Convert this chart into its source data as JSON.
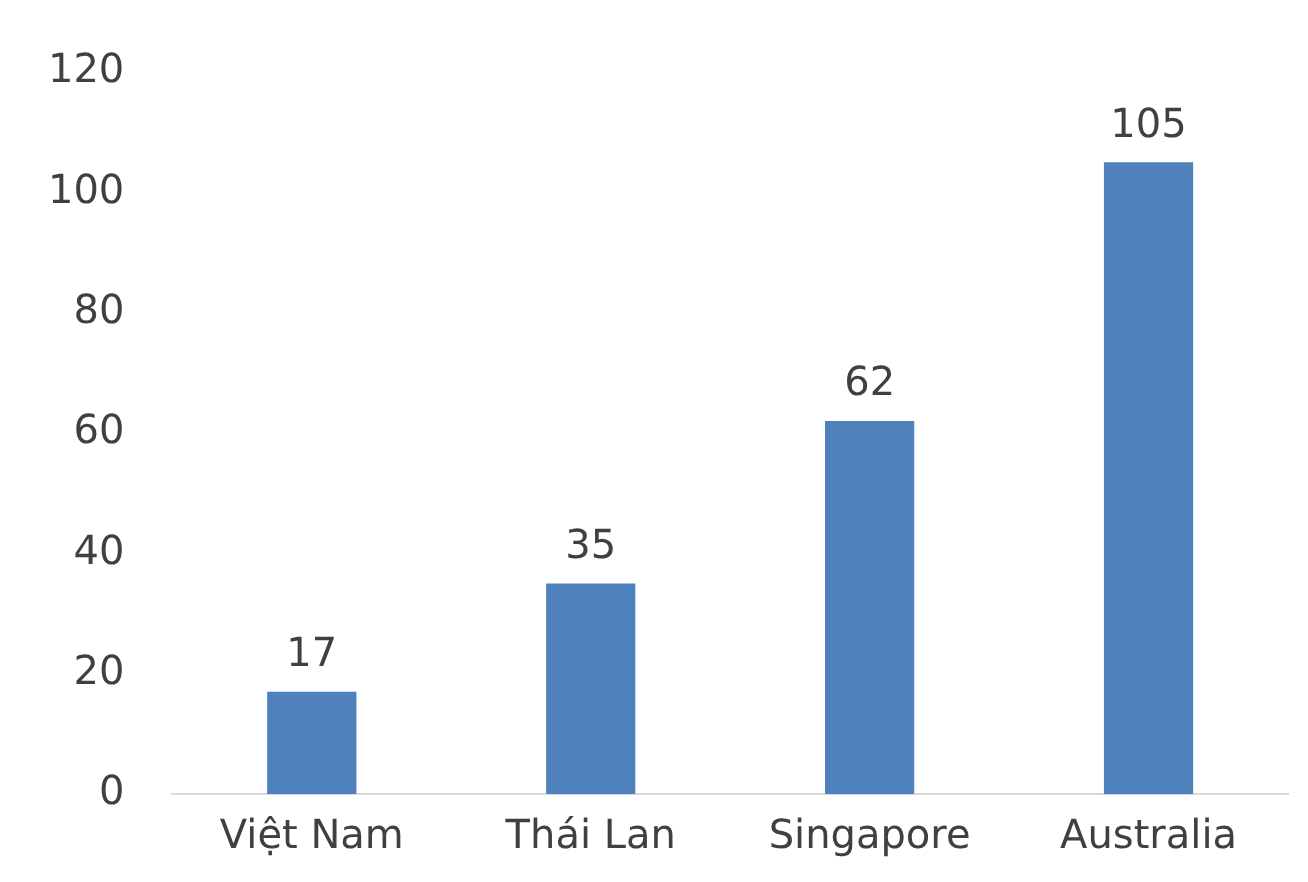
{
  "chart_data": {
    "type": "bar",
    "categories": [
      "Việt Nam",
      "Thái Lan",
      "Singapore",
      "Australia"
    ],
    "values": [
      17,
      35,
      62,
      105
    ],
    "color": "#4f81bd",
    "ylim": [
      0,
      120
    ],
    "yticks": [
      0,
      20,
      40,
      60,
      80,
      100,
      120
    ],
    "grid": false,
    "legend": false,
    "data_labels": true
  }
}
